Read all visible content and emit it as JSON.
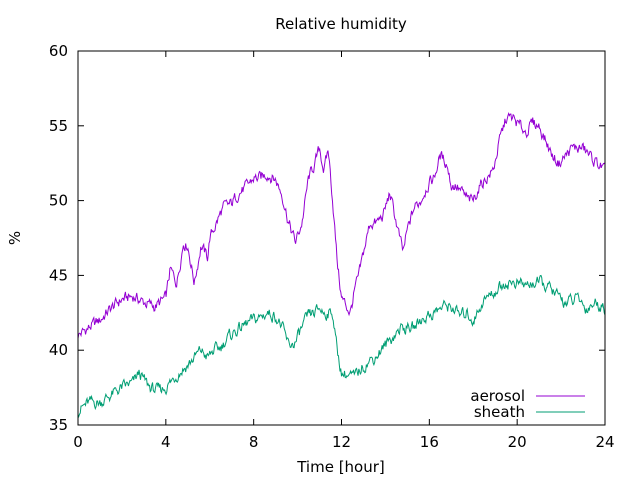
{
  "chart_data": {
    "type": "line",
    "title": "Relative humidity",
    "xlabel": "Time [hour]",
    "ylabel": "%",
    "xlim": [
      0,
      24
    ],
    "ylim": [
      35,
      60
    ],
    "x_ticks": [
      0,
      4,
      8,
      12,
      16,
      20,
      24
    ],
    "y_ticks": [
      35,
      40,
      45,
      50,
      55,
      60
    ],
    "grid": false,
    "legend_position": "bottom-right",
    "series": [
      {
        "name": "aerosol",
        "color": "#9400d3",
        "x": [
          0,
          0.5,
          1,
          1.5,
          2,
          2.5,
          3,
          3.5,
          4,
          4.2,
          4.5,
          4.8,
          5,
          5.3,
          5.6,
          5.9,
          6,
          6.3,
          6.6,
          7,
          7.3,
          7.6,
          8,
          8.3,
          8.6,
          9,
          9.3,
          9.6,
          9.9,
          10.2,
          10.5,
          10.8,
          11,
          11.2,
          11.4,
          11.6,
          11.8,
          12,
          12.2,
          12.4,
          12.6,
          12.8,
          13,
          13.3,
          13.6,
          13.9,
          14.2,
          14.5,
          14.8,
          15,
          15.3,
          15.6,
          15.9,
          16.2,
          16.5,
          16.8,
          17,
          17.2,
          17.5,
          17.8,
          18,
          18.3,
          18.6,
          18.9,
          19.2,
          19.5,
          19.8,
          20.1,
          20.4,
          20.7,
          21,
          21.3,
          21.6,
          21.9,
          22.2,
          22.5,
          22.8,
          23,
          23.3,
          23.6,
          23.8,
          24
        ],
        "y": [
          41,
          41.5,
          42,
          42.8,
          43.4,
          43.6,
          43.2,
          42.9,
          43.5,
          45.4,
          44.5,
          47.2,
          47,
          44.5,
          47,
          46.2,
          47.5,
          48.5,
          49.5,
          49.8,
          50.5,
          50.8,
          51.5,
          51.5,
          51.8,
          51.4,
          50.4,
          48.5,
          47.2,
          48.5,
          51.5,
          52.5,
          53.5,
          52,
          53.4,
          50,
          46,
          43.5,
          43,
          42.5,
          44,
          45,
          46.5,
          48.5,
          48.5,
          49,
          50.5,
          48.5,
          46.5,
          48,
          49.5,
          50,
          51,
          51.5,
          53,
          52.5,
          51,
          51,
          50.5,
          50,
          50,
          51,
          51.5,
          52,
          54,
          55.5,
          55.5,
          55,
          54.6,
          55.2,
          55,
          54,
          53,
          52.5,
          53,
          53.5,
          53.5,
          53.5,
          53,
          52.5,
          52.3,
          52
        ]
      },
      {
        "name": "sheath",
        "color": "#009e73",
        "x": [
          0,
          0.5,
          1,
          1.5,
          2,
          2.5,
          2.8,
          3,
          3.3,
          3.6,
          4,
          4.3,
          4.6,
          5,
          5.3,
          5.6,
          5.9,
          6.2,
          6.5,
          6.8,
          7.1,
          7.4,
          7.7,
          8,
          8.3,
          8.6,
          9,
          9.3,
          9.6,
          9.9,
          10.2,
          10.5,
          10.8,
          11,
          11.2,
          11.4,
          11.6,
          11.8,
          12,
          12.3,
          12.6,
          12.9,
          13.2,
          13.5,
          13.8,
          14.1,
          14.4,
          14.7,
          15,
          15.3,
          15.6,
          15.9,
          16.2,
          16.5,
          16.8,
          17.1,
          17.4,
          17.7,
          18,
          18.2,
          18.4,
          18.6,
          18.9,
          19.2,
          19.5,
          19.8,
          20.1,
          20.4,
          20.7,
          21,
          21.3,
          21.6,
          21.9,
          22.2,
          22.5,
          22.8,
          23,
          23.2,
          23.5,
          23.8,
          24
        ],
        "y": [
          36,
          36.5,
          36.5,
          37,
          37.5,
          37.8,
          38.5,
          38,
          37.5,
          37.3,
          37.5,
          38,
          38.5,
          39,
          39.5,
          40,
          39.5,
          40,
          40.2,
          40.8,
          41.2,
          41.5,
          41.8,
          42,
          42.2,
          42.5,
          42.3,
          41.5,
          40.3,
          40.5,
          41.5,
          42.3,
          42.5,
          42.8,
          42.5,
          42.5,
          42.5,
          40,
          38.5,
          38.3,
          38.2,
          38.8,
          39.2,
          39.5,
          40,
          40.5,
          41,
          41.5,
          41.5,
          41.5,
          42,
          42.3,
          42.5,
          42.8,
          43,
          42.8,
          42.3,
          42.5,
          42,
          42.5,
          43.2,
          43.5,
          43.8,
          44.2,
          44.5,
          44.5,
          44.5,
          44.3,
          44.5,
          44.5,
          44.3,
          44,
          43.5,
          43.2,
          43.3,
          43.5,
          43,
          42.8,
          43.2,
          43,
          42.8
        ]
      }
    ]
  }
}
